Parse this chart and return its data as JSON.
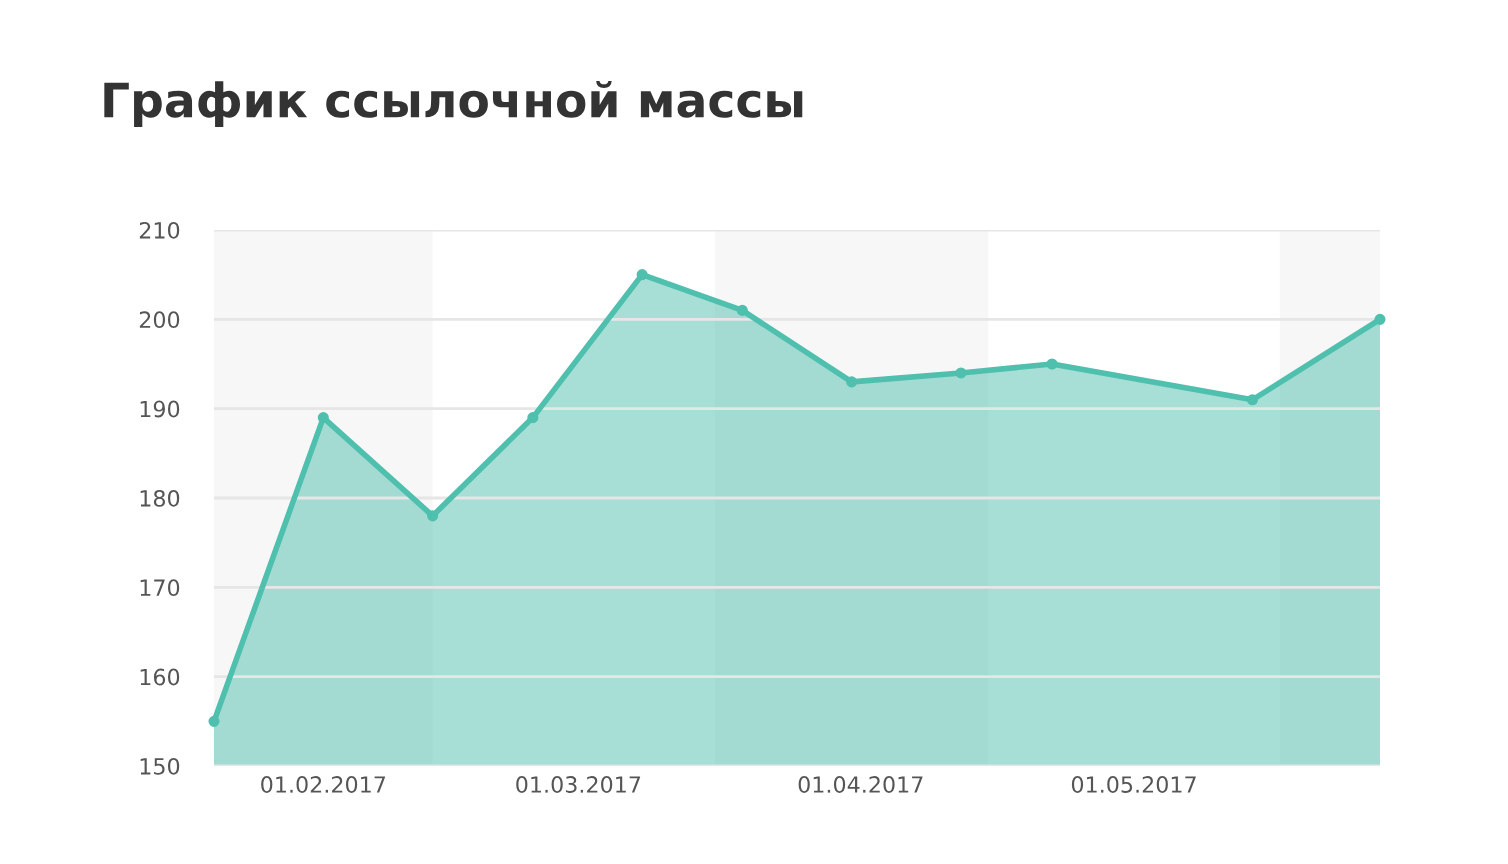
{
  "chart_data": {
    "type": "area",
    "title": "График ссылочной массы",
    "x": [
      "2017-01-20",
      "2017-02-01",
      "2017-02-13",
      "2017-02-24",
      "2017-03-08",
      "2017-03-19",
      "2017-03-31",
      "2017-04-12",
      "2017-04-22",
      "2017-05-14",
      "2017-05-28"
    ],
    "series": [
      {
        "color": "#4fbfae",
        "values": [
          155,
          189,
          178,
          189,
          205,
          201,
          193,
          194,
          195,
          191,
          200
        ]
      }
    ],
    "xlim": [
      "2017-01-20",
      "2017-05-28"
    ],
    "xticks": [
      {
        "value": "2017-02-01",
        "label": "01.02.2017"
      },
      {
        "value": "2017-03-01",
        "label": "01.03.2017"
      },
      {
        "value": "2017-04-01",
        "label": "01.04.2017"
      },
      {
        "value": "2017-05-01",
        "label": "01.05.2017"
      }
    ],
    "ylim": [
      150,
      210
    ],
    "yticks": [
      150,
      160,
      170,
      180,
      190,
      200,
      210
    ],
    "bands": [
      {
        "axis": "x",
        "from": "2017-01-20",
        "to": "2017-02-13",
        "color": "#f7f7f7"
      },
      {
        "axis": "x",
        "from": "2017-03-16",
        "to": "2017-04-15",
        "color": "#f7f7f7"
      },
      {
        "axis": "x",
        "from": "2017-05-17",
        "to": "2017-05-28",
        "color": "#f7f7f7"
      }
    ],
    "grid": "y",
    "marker": "circle",
    "line_style": "solid",
    "legend": false
  }
}
